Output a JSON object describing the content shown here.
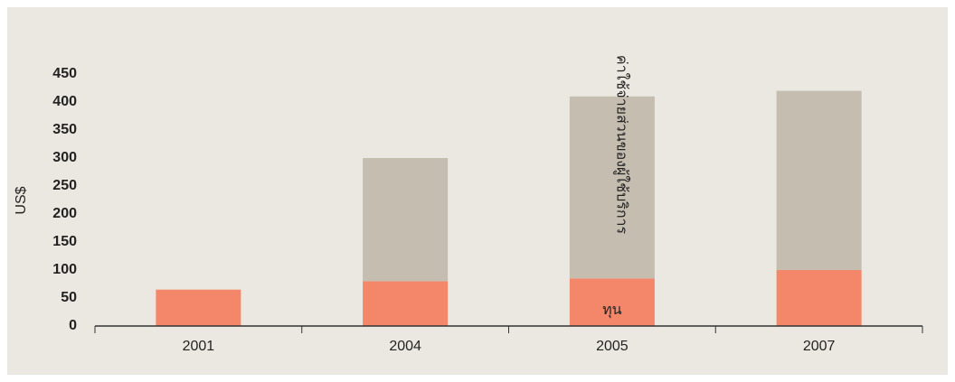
{
  "chart_data": {
    "type": "stacked-bar",
    "y_label": "US$",
    "categories": [
      "2001",
      "2004",
      "2005",
      "2007"
    ],
    "series": [
      {
        "name": "ทุน",
        "color": "#f4876a",
        "values": [
          65,
          80,
          85,
          100
        ]
      },
      {
        "name": "ค่าใช้จ่ายส่วนของผู้ใช้บริการ",
        "color": "#c4bdb0",
        "values": [
          0,
          220,
          325,
          320
        ]
      }
    ],
    "ylim": [
      0,
      450
    ],
    "yticks": [
      0,
      50,
      100,
      150,
      200,
      250,
      300,
      350,
      400,
      450
    ]
  }
}
